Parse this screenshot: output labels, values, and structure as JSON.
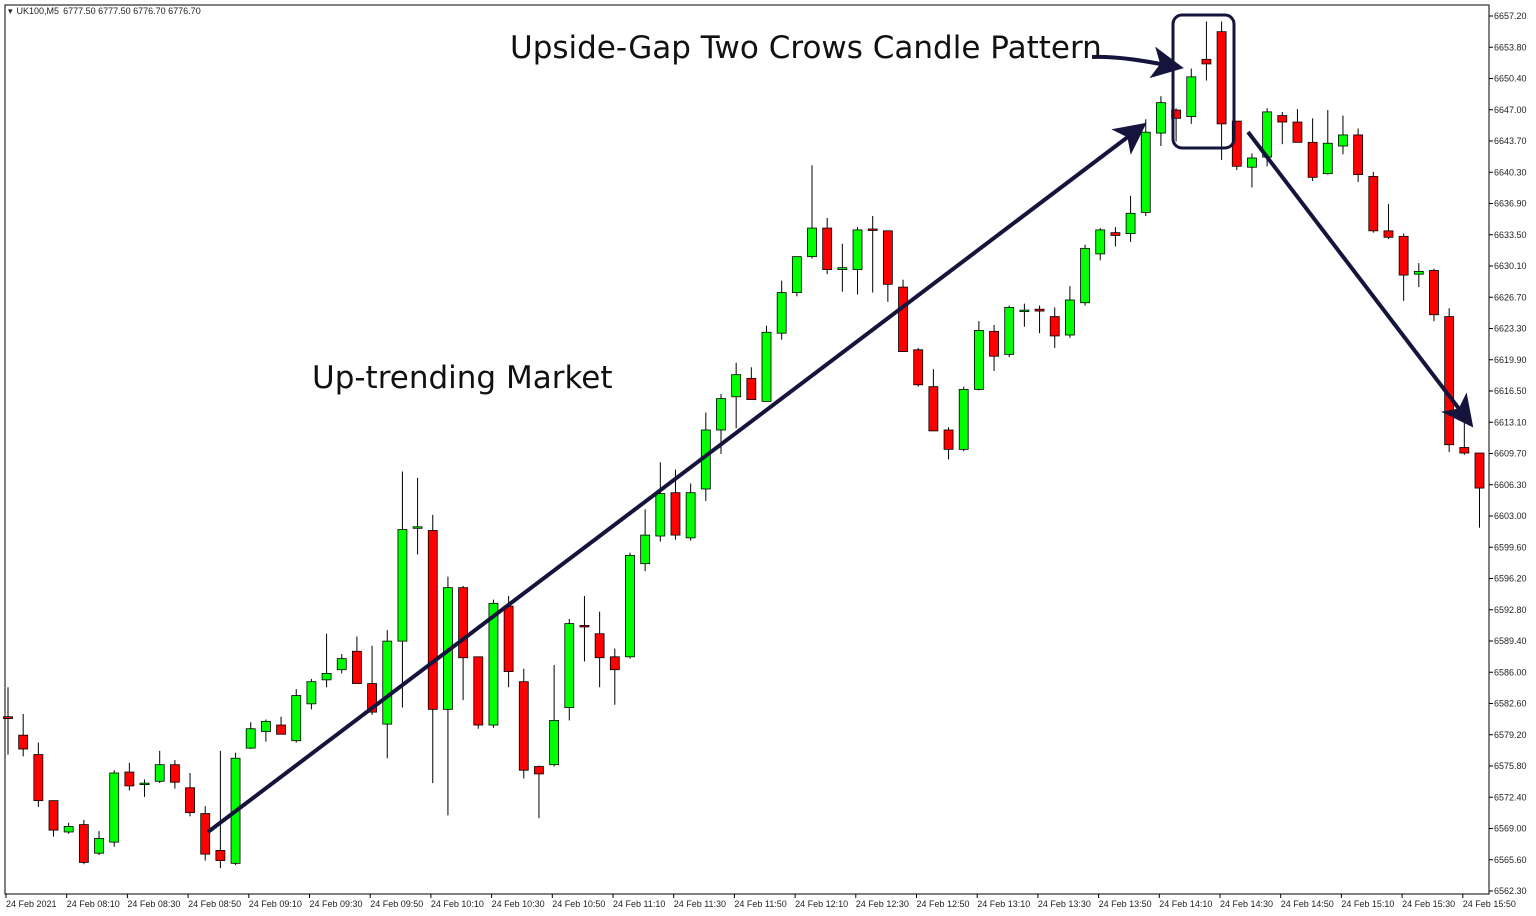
{
  "header": {
    "symbol": "UK100,M5",
    "ohlc": "6777.50 6777.50 6776.70 6776.70"
  },
  "annotations": {
    "pattern_label": "Upside-Gap Two Crows Candle Pattern",
    "trend_label": "Up-trending Market"
  },
  "colors": {
    "bull": "#00ff00",
    "bear": "#ff0000",
    "wick": "#000000",
    "arrow": "#14143c",
    "axis": "#000000"
  },
  "chart_data": {
    "type": "candlestick",
    "title": "",
    "xlabel": "",
    "ylabel": "",
    "ylim": [
      6562.3,
      6657.2
    ],
    "grid": false,
    "y_ticks": [
      "6657.20",
      "6653.80",
      "6650.40",
      "6647.00",
      "6643.70",
      "6640.30",
      "6636.90",
      "6633.50",
      "6630.10",
      "6626.70",
      "6623.30",
      "6619.90",
      "6616.50",
      "6613.10",
      "6609.70",
      "6606.30",
      "6603.00",
      "6599.60",
      "6596.20",
      "6592.80",
      "6589.40",
      "6586.00",
      "6582.60",
      "6579.20",
      "6575.80",
      "6572.40",
      "6569.00",
      "6565.60",
      "6562.30"
    ],
    "x_ticks": [
      "24 Feb 2021",
      "24 Feb 08:10",
      "24 Feb 08:30",
      "24 Feb 08:50",
      "24 Feb 09:10",
      "24 Feb 09:30",
      "24 Feb 09:50",
      "24 Feb 10:10",
      "24 Feb 10:30",
      "24 Feb 10:50",
      "24 Feb 11:10",
      "24 Feb 11:30",
      "24 Feb 11:50",
      "24 Feb 12:10",
      "24 Feb 12:30",
      "24 Feb 12:50",
      "24 Feb 13:10",
      "24 Feb 13:30",
      "24 Feb 13:50",
      "24 Feb 14:10",
      "24 Feb 14:30",
      "24 Feb 14:50",
      "24 Feb 15:10",
      "24 Feb 15:30",
      "24 Feb 15:50"
    ],
    "candles": [
      {
        "o": 6581.2,
        "h": 6584.4,
        "l": 6577.1,
        "c": 6581.0
      },
      {
        "o": 6579.2,
        "h": 6581.5,
        "l": 6576.9,
        "c": 6577.7
      },
      {
        "o": 6577.1,
        "h": 6578.4,
        "l": 6571.4,
        "c": 6572.1
      },
      {
        "o": 6572.1,
        "h": 6572.1,
        "l": 6568.2,
        "c": 6568.9
      },
      {
        "o": 6568.7,
        "h": 6569.7,
        "l": 6568.5,
        "c": 6569.3
      },
      {
        "o": 6569.5,
        "h": 6570.0,
        "l": 6565.2,
        "c": 6565.4
      },
      {
        "o": 6566.4,
        "h": 6568.8,
        "l": 6566.2,
        "c": 6568.0
      },
      {
        "o": 6567.6,
        "h": 6575.4,
        "l": 6567.1,
        "c": 6575.1
      },
      {
        "o": 6575.2,
        "h": 6576.2,
        "l": 6573.2,
        "c": 6573.7
      },
      {
        "o": 6574.0,
        "h": 6574.4,
        "l": 6572.5,
        "c": 6574.0
      },
      {
        "o": 6574.2,
        "h": 6577.5,
        "l": 6574.0,
        "c": 6576.0
      },
      {
        "o": 6576.0,
        "h": 6576.5,
        "l": 6573.4,
        "c": 6574.1
      },
      {
        "o": 6573.5,
        "h": 6575.1,
        "l": 6570.4,
        "c": 6570.8
      },
      {
        "o": 6570.7,
        "h": 6571.5,
        "l": 6565.6,
        "c": 6566.3
      },
      {
        "o": 6566.7,
        "h": 6577.5,
        "l": 6564.8,
        "c": 6565.6
      },
      {
        "o": 6565.3,
        "h": 6577.3,
        "l": 6565.1,
        "c": 6576.7
      },
      {
        "o": 6577.8,
        "h": 6580.6,
        "l": 6577.7,
        "c": 6579.9
      },
      {
        "o": 6579.6,
        "h": 6580.9,
        "l": 6578.5,
        "c": 6580.7
      },
      {
        "o": 6580.3,
        "h": 6581.2,
        "l": 6579.3,
        "c": 6579.3
      },
      {
        "o": 6578.6,
        "h": 6584.2,
        "l": 6578.4,
        "c": 6583.5
      },
      {
        "o": 6582.6,
        "h": 6585.3,
        "l": 6582.0,
        "c": 6585.0
      },
      {
        "o": 6585.2,
        "h": 6590.2,
        "l": 6584.4,
        "c": 6585.9
      },
      {
        "o": 6586.3,
        "h": 6588.0,
        "l": 6585.9,
        "c": 6587.5
      },
      {
        "o": 6588.3,
        "h": 6589.9,
        "l": 6584.8,
        "c": 6584.8
      },
      {
        "o": 6584.8,
        "h": 6588.9,
        "l": 6581.4,
        "c": 6581.7
      },
      {
        "o": 6580.4,
        "h": 6590.6,
        "l": 6576.7,
        "c": 6589.4
      },
      {
        "o": 6589.4,
        "h": 6607.8,
        "l": 6582.2,
        "c": 6601.5
      },
      {
        "o": 6601.8,
        "h": 6607.1,
        "l": 6598.8,
        "c": 6601.8
      },
      {
        "o": 6601.4,
        "h": 6603.1,
        "l": 6574.0,
        "c": 6582.0
      },
      {
        "o": 6582.0,
        "h": 6596.4,
        "l": 6570.5,
        "c": 6595.2
      },
      {
        "o": 6595.2,
        "h": 6595.4,
        "l": 6583.0,
        "c": 6587.6
      },
      {
        "o": 6587.7,
        "h": 6587.7,
        "l": 6579.9,
        "c": 6580.3
      },
      {
        "o": 6580.3,
        "h": 6593.9,
        "l": 6580.0,
        "c": 6593.5
      },
      {
        "o": 6593.2,
        "h": 6594.3,
        "l": 6584.4,
        "c": 6586.1
      },
      {
        "o": 6585.0,
        "h": 6586.4,
        "l": 6574.5,
        "c": 6575.4
      },
      {
        "o": 6575.8,
        "h": 6575.9,
        "l": 6570.2,
        "c": 6575.0
      },
      {
        "o": 6576.0,
        "h": 6586.8,
        "l": 6575.8,
        "c": 6580.8
      },
      {
        "o": 6582.2,
        "h": 6591.8,
        "l": 6580.8,
        "c": 6591.3
      },
      {
        "o": 6591.1,
        "h": 6594.3,
        "l": 6587.2,
        "c": 6591.0
      },
      {
        "o": 6590.2,
        "h": 6592.6,
        "l": 6584.4,
        "c": 6587.6
      },
      {
        "o": 6587.7,
        "h": 6588.6,
        "l": 6582.5,
        "c": 6586.3
      },
      {
        "o": 6587.7,
        "h": 6599.0,
        "l": 6587.5,
        "c": 6598.7
      },
      {
        "o": 6597.8,
        "h": 6603.7,
        "l": 6597.0,
        "c": 6600.9
      },
      {
        "o": 6600.8,
        "h": 6608.8,
        "l": 6600.2,
        "c": 6605.4
      },
      {
        "o": 6605.5,
        "h": 6608.0,
        "l": 6600.4,
        "c": 6600.9
      },
      {
        "o": 6600.6,
        "h": 6606.5,
        "l": 6600.3,
        "c": 6605.5
      },
      {
        "o": 6605.9,
        "h": 6614.2,
        "l": 6604.6,
        "c": 6612.3
      },
      {
        "o": 6612.3,
        "h": 6616.2,
        "l": 6609.7,
        "c": 6615.7
      },
      {
        "o": 6615.9,
        "h": 6619.6,
        "l": 6612.5,
        "c": 6618.3
      },
      {
        "o": 6617.9,
        "h": 6619.1,
        "l": 6615.6,
        "c": 6615.6
      },
      {
        "o": 6615.4,
        "h": 6623.6,
        "l": 6615.4,
        "c": 6622.9
      },
      {
        "o": 6622.8,
        "h": 6628.5,
        "l": 6622.1,
        "c": 6627.2
      },
      {
        "o": 6627.2,
        "h": 6631.0,
        "l": 6626.8,
        "c": 6631.1
      },
      {
        "o": 6631.1,
        "h": 6641.0,
        "l": 6630.9,
        "c": 6634.2
      },
      {
        "o": 6634.2,
        "h": 6635.3,
        "l": 6629.2,
        "c": 6629.7
      },
      {
        "o": 6629.7,
        "h": 6632.5,
        "l": 6627.3,
        "c": 6629.9
      },
      {
        "o": 6629.7,
        "h": 6634.3,
        "l": 6627.0,
        "c": 6634.0
      },
      {
        "o": 6634.1,
        "h": 6635.5,
        "l": 6627.2,
        "c": 6634.0
      },
      {
        "o": 6633.9,
        "h": 6633.9,
        "l": 6626.2,
        "c": 6628.1
      },
      {
        "o": 6627.8,
        "h": 6628.6,
        "l": 6620.8,
        "c": 6620.8
      },
      {
        "o": 6621.0,
        "h": 6621.2,
        "l": 6617.0,
        "c": 6617.2
      },
      {
        "o": 6617.0,
        "h": 6618.9,
        "l": 6612.2,
        "c": 6612.2
      },
      {
        "o": 6612.3,
        "h": 6612.6,
        "l": 6609.1,
        "c": 6610.2
      },
      {
        "o": 6610.2,
        "h": 6617.0,
        "l": 6610.0,
        "c": 6616.7
      },
      {
        "o": 6616.7,
        "h": 6624.1,
        "l": 6616.6,
        "c": 6623.1
      },
      {
        "o": 6623.0,
        "h": 6623.7,
        "l": 6618.7,
        "c": 6620.3
      },
      {
        "o": 6620.5,
        "h": 6625.8,
        "l": 6620.2,
        "c": 6625.6
      },
      {
        "o": 6625.3,
        "h": 6626.0,
        "l": 6623.5,
        "c": 6625.3
      },
      {
        "o": 6625.4,
        "h": 6625.8,
        "l": 6622.8,
        "c": 6625.2
      },
      {
        "o": 6624.6,
        "h": 6625.6,
        "l": 6621.2,
        "c": 6622.5
      },
      {
        "o": 6622.6,
        "h": 6627.9,
        "l": 6622.3,
        "c": 6626.4
      },
      {
        "o": 6626.1,
        "h": 6632.4,
        "l": 6625.8,
        "c": 6632.0
      },
      {
        "o": 6631.4,
        "h": 6634.2,
        "l": 6630.7,
        "c": 6634.0
      },
      {
        "o": 6633.7,
        "h": 6634.3,
        "l": 6632.2,
        "c": 6633.4
      },
      {
        "o": 6633.6,
        "h": 6637.7,
        "l": 6632.7,
        "c": 6635.8
      },
      {
        "o": 6635.9,
        "h": 6646.0,
        "l": 6635.5,
        "c": 6644.6
      },
      {
        "o": 6644.5,
        "h": 6648.5,
        "l": 6643.1,
        "c": 6647.8
      },
      {
        "o": 6647.0,
        "h": 6647.2,
        "l": 6643.6,
        "c": 6646.1
      },
      {
        "o": 6646.3,
        "h": 6651.5,
        "l": 6645.5,
        "c": 6650.6
      },
      {
        "o": 6652.5,
        "h": 6656.6,
        "l": 6650.2,
        "c": 6652.0
      },
      {
        "o": 6655.5,
        "h": 6656.6,
        "l": 6641.6,
        "c": 6645.5
      },
      {
        "o": 6645.8,
        "h": 6645.8,
        "l": 6640.5,
        "c": 6640.9
      },
      {
        "o": 6640.8,
        "h": 6642.3,
        "l": 6638.6,
        "c": 6641.8
      },
      {
        "o": 6641.9,
        "h": 6647.2,
        "l": 6640.9,
        "c": 6646.8
      },
      {
        "o": 6646.4,
        "h": 6646.8,
        "l": 6643.3,
        "c": 6645.7
      },
      {
        "o": 6645.7,
        "h": 6647.1,
        "l": 6643.6,
        "c": 6643.5
      },
      {
        "o": 6643.5,
        "h": 6646.1,
        "l": 6639.3,
        "c": 6639.7
      },
      {
        "o": 6640.1,
        "h": 6647.0,
        "l": 6640.0,
        "c": 6643.4
      },
      {
        "o": 6643.1,
        "h": 6646.4,
        "l": 6642.2,
        "c": 6644.3
      },
      {
        "o": 6644.3,
        "h": 6645.0,
        "l": 6639.2,
        "c": 6640.0
      },
      {
        "o": 6639.8,
        "h": 6640.3,
        "l": 6633.7,
        "c": 6633.9
      },
      {
        "o": 6633.9,
        "h": 6636.8,
        "l": 6633.0,
        "c": 6633.2
      },
      {
        "o": 6633.3,
        "h": 6633.6,
        "l": 6626.3,
        "c": 6629.1
      },
      {
        "o": 6629.2,
        "h": 6630.4,
        "l": 6627.8,
        "c": 6629.5
      },
      {
        "o": 6629.6,
        "h": 6629.8,
        "l": 6624.1,
        "c": 6624.8
      },
      {
        "o": 6624.6,
        "h": 6625.5,
        "l": 6609.9,
        "c": 6610.7
      },
      {
        "o": 6610.4,
        "h": 6613.6,
        "l": 6609.6,
        "c": 6609.8
      },
      {
        "o": 6609.8,
        "h": 6609.8,
        "l": 6601.7,
        "c": 6606.0
      }
    ]
  }
}
